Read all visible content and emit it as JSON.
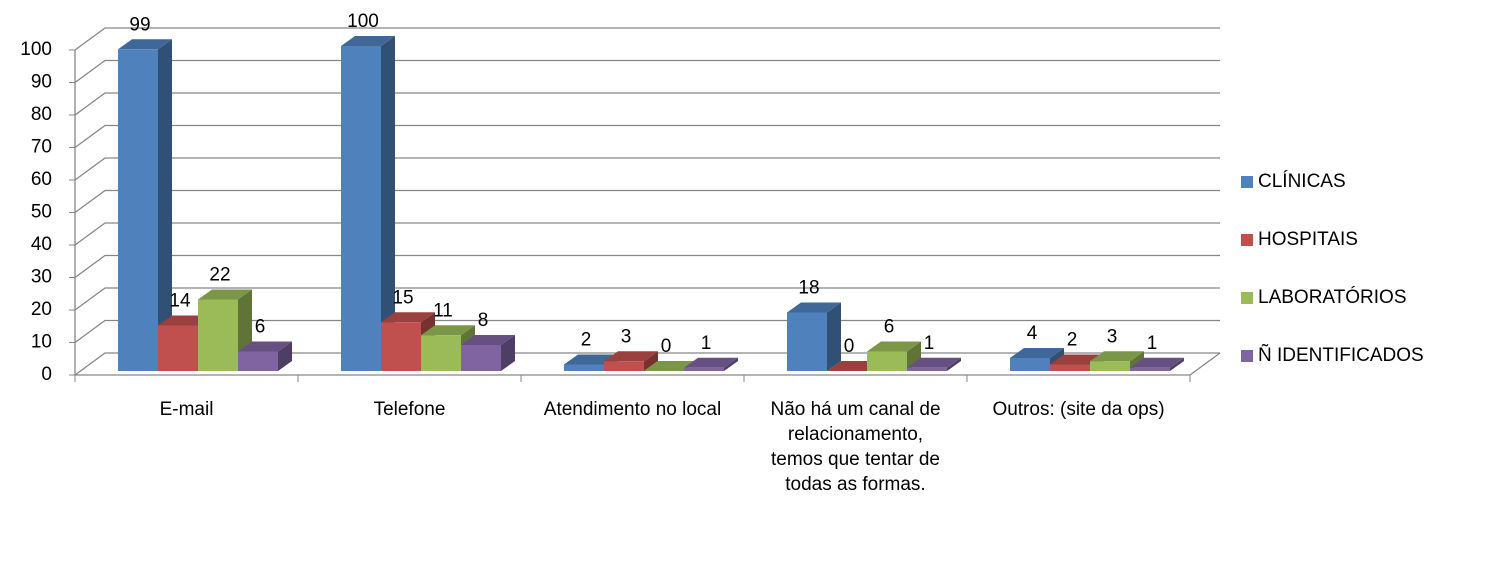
{
  "chart_data": {
    "type": "bar3d",
    "categories": [
      "E-mail",
      "Telefone",
      "Atendimento no local",
      "Não há um canal de relacionamento, temos que tentar de todas as formas.",
      "Outros: (site da ops)"
    ],
    "series": [
      {
        "name": "CLÍNICAS",
        "color": "#4f81bd",
        "values": [
          99,
          100,
          2,
          18,
          4
        ]
      },
      {
        "name": "HOSPITAIS",
        "color": "#c0504d",
        "values": [
          14,
          15,
          3,
          0,
          2
        ]
      },
      {
        "name": "LABORATÓRIOS",
        "color": "#9bbb59",
        "values": [
          22,
          11,
          0,
          6,
          3
        ]
      },
      {
        "name": "Ñ IDENTIFICADOS",
        "color": "#8064a2",
        "values": [
          6,
          8,
          1,
          1,
          1
        ]
      }
    ],
    "ylim": [
      0,
      100
    ],
    "yticks": [
      0,
      10,
      20,
      30,
      40,
      50,
      60,
      70,
      80,
      90,
      100
    ],
    "grid": true,
    "legend": "right"
  }
}
